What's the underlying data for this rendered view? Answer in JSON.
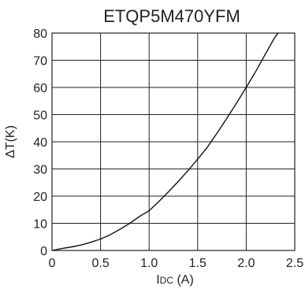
{
  "chart_data": {
    "type": "line",
    "title": "ETQP5M470YFM",
    "xlabel_main": "I",
    "xlabel_sub": "DC",
    "xlabel_unit": " (A)",
    "ylabel": "ΔT(K)",
    "xlim": [
      0,
      2.5
    ],
    "ylim": [
      0,
      80
    ],
    "x_ticks": [
      0,
      0.5,
      1.0,
      1.5,
      2.0,
      2.5
    ],
    "x_tick_labels": [
      "0",
      "0.5",
      "1.0",
      "1.5",
      "2.0",
      "2.5"
    ],
    "y_ticks": [
      0,
      10,
      20,
      30,
      40,
      50,
      60,
      70,
      80
    ],
    "y_tick_labels": [
      "0",
      "10",
      "20",
      "30",
      "40",
      "50",
      "60",
      "70",
      "80"
    ],
    "grid": true,
    "series": [
      {
        "x": [
          0,
          0.1,
          0.2,
          0.3,
          0.4,
          0.5,
          0.6,
          0.7,
          0.8,
          0.9,
          1.0,
          1.1,
          1.2,
          1.3,
          1.4,
          1.5,
          1.6,
          1.7,
          1.8,
          1.9,
          2.0,
          2.1,
          2.2,
          2.3,
          2.33
        ],
        "y": [
          0,
          0.7,
          1.3,
          2.0,
          3.0,
          4.2,
          5.8,
          7.8,
          10.0,
          12.5,
          14.6,
          18.0,
          21.6,
          25.4,
          29.4,
          33.6,
          38.0,
          43.2,
          48.6,
          54.2,
          60.0,
          66.0,
          72.4,
          78.8,
          80.0
        ]
      }
    ]
  }
}
